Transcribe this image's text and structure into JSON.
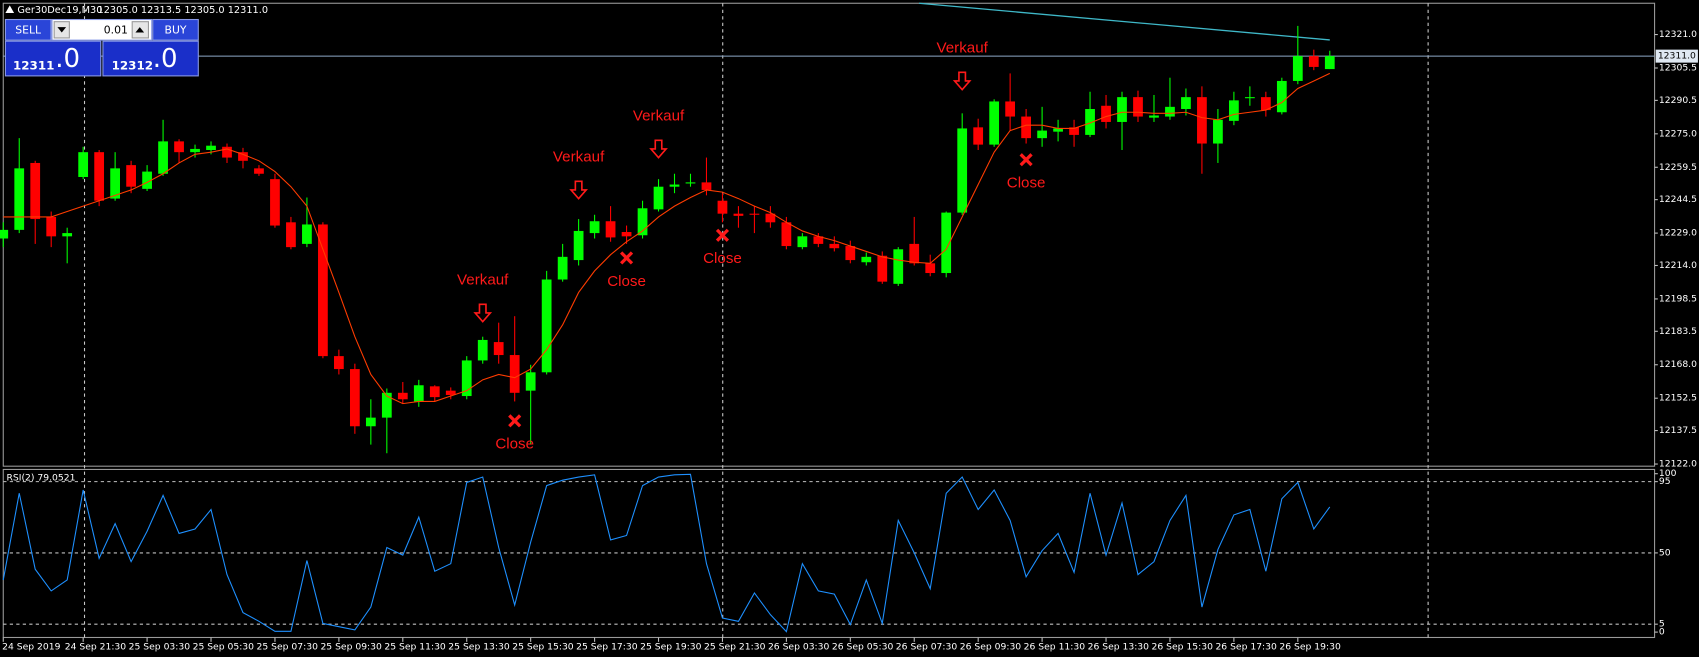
{
  "header": {
    "symbol": "Ger30Dec19,M30",
    "ohlc": "12305.0 12313.5 12305.0 12311.0"
  },
  "trade_panel": {
    "sell": "SELL",
    "buy": "BUY",
    "lot": "0.01",
    "bid": "12311",
    "bid_fraction": ".0",
    "ask": "12312",
    "ask_fraction": ".0"
  },
  "chart_data": [
    {
      "type": "candlestick",
      "categories": [
        "24 Sep 2019",
        null,
        null,
        null,
        null,
        "24 Sep 21:30",
        null,
        null,
        null,
        "25 Sep 03:30",
        null,
        null,
        null,
        "25 Sep 05:30",
        null,
        null,
        null,
        "25 Sep 07:30",
        null,
        null,
        null,
        "25 Sep 09:30",
        null,
        null,
        null,
        "25 Sep 11:30",
        null,
        null,
        null,
        "25 Sep 13:30",
        null,
        null,
        null,
        "25 Sep 15:30",
        null,
        null,
        null,
        "25 Sep 17:30",
        null,
        null,
        null,
        "25 Sep 19:30",
        null,
        null,
        null,
        "25 Sep 21:30",
        null,
        null,
        null,
        "26 Sep 03:30",
        null,
        null,
        null,
        "26 Sep 05:30",
        null,
        null,
        null,
        "26 Sep 07:30",
        null,
        null,
        null,
        "26 Sep 09:30",
        null,
        null,
        null,
        "26 Sep 11:30",
        null,
        null,
        null,
        "26 Sep 13:30",
        null,
        null,
        null,
        "26 Sep 15:30",
        null,
        null,
        null,
        "26 Sep 17:30",
        null,
        null,
        null,
        "26 Sep 19:30",
        null,
        null
      ],
      "open": [
        12226.5,
        12230.5,
        12261.5,
        12236.5,
        12227.5,
        12255,
        12266.5,
        12245,
        12260.5,
        12249.5,
        12256.5,
        12271.5,
        12266.5,
        12267.5,
        12269,
        12266.5,
        12259,
        12254,
        12234,
        12224,
        12233,
        12172,
        12166,
        12139.5,
        12143.5,
        12155,
        12151,
        12158,
        12156,
        12153.5,
        12170,
        12178.5,
        12172.5,
        12156,
        12164.5,
        12207.5,
        12216.5,
        12229,
        12234.5,
        12229.5,
        12228,
        12240,
        12250.5,
        12252.5,
        12252.5,
        12244,
        12238,
        12238,
        12238,
        12234,
        12222.5,
        12227.5,
        12224,
        12223,
        12215.5,
        12218.5,
        12205.5,
        12224,
        12215,
        12210.5,
        12238.5,
        12278,
        12270,
        12290,
        12283,
        12273,
        12276,
        12278,
        12274.5,
        12288,
        12280.5,
        12292,
        12282.5,
        12283,
        12286.5,
        12292,
        12270.5,
        12281,
        12291.5,
        12292,
        12285,
        12299.5,
        12311,
        12305
      ],
      "high": [
        12234,
        12273,
        12262.5,
        12239,
        12231.5,
        12269,
        12267.5,
        12266.5,
        12262.5,
        12260.5,
        12281.5,
        12272.5,
        12270,
        12271.5,
        12270.5,
        12268.5,
        12260.5,
        12256.5,
        12236.5,
        12245.5,
        12234,
        12175,
        12168.5,
        12152,
        12157,
        12160,
        12161,
        12158.5,
        12157.5,
        12172,
        12181,
        12187.5,
        12190.5,
        12168,
        12211.5,
        12224,
        12235.5,
        12237.5,
        12241.5,
        12232.5,
        12244,
        12254,
        12256.5,
        12256.5,
        12264,
        12247.5,
        12241.5,
        12241.5,
        12241.5,
        12236.5,
        12229,
        12229,
        12227.5,
        12225.5,
        12220,
        12220.5,
        12222.5,
        12236.5,
        12219,
        12239,
        12284.5,
        12282,
        12291,
        12303,
        12286.5,
        12287.5,
        12281.5,
        12281.5,
        12294.5,
        12293,
        12294.5,
        12295,
        12293,
        12301,
        12296,
        12297,
        12286.5,
        12294.5,
        12297,
        12294.5,
        12301,
        12325,
        12314,
        12313.5
      ],
      "low": [
        12222.5,
        12229,
        12224,
        12222.5,
        12215,
        12254,
        12241.5,
        12244,
        12247.5,
        12248.5,
        12255.5,
        12261.5,
        12264,
        12265.5,
        12261.5,
        12259,
        12255.5,
        12231.5,
        12221.5,
        12222.5,
        12171,
        12163.5,
        12136,
        12131,
        12127,
        12150,
        12148.5,
        12151,
        12152,
        12152,
        12168.5,
        12168.5,
        12151,
        12131,
        12163.5,
        12206.5,
        12214,
        12226.5,
        12225,
        12224,
        12226.5,
        12239,
        12247.5,
        12250.5,
        12246.5,
        12234,
        12231.5,
        12229,
        12231.5,
        12221.5,
        12221.5,
        12222.5,
        12220.5,
        12215,
        12214,
        12205.5,
        12204.5,
        12214,
        12209,
        12208.5,
        12237.5,
        12267.5,
        12269,
        12276.5,
        12270.5,
        12269,
        12271.5,
        12269,
        12273.5,
        12277.5,
        12267.5,
        12280.5,
        12280.5,
        12281.5,
        12283.5,
        12256.5,
        12261.5,
        12279,
        12288,
        12283,
        12284,
        12298,
        12304.5,
        12305
      ],
      "close": [
        12230.5,
        12259,
        12235.5,
        12227.5,
        12229,
        12266.5,
        12244,
        12259,
        12250.5,
        12257.5,
        12271.5,
        12266.5,
        12268,
        12269.5,
        12264,
        12262.5,
        12256.5,
        12232.5,
        12222.5,
        12233,
        12172,
        12166,
        12139.5,
        12143.5,
        12155,
        12152,
        12158.5,
        12153,
        12154,
        12170,
        12179.5,
        12172.5,
        12155,
        12164.5,
        12207.5,
        12218,
        12230,
        12234.5,
        12227,
        12227.5,
        12240.5,
        12250.5,
        12251.5,
        12252.5,
        12249,
        12238,
        12237,
        12237.5,
        12234,
        12223,
        12227.5,
        12224,
        12222,
        12216.5,
        12218,
        12206.5,
        12221.5,
        12215,
        12210.5,
        12238.5,
        12277.5,
        12270,
        12290,
        12283,
        12273,
        12276.5,
        12277.5,
        12274.5,
        12286.5,
        12280.5,
        12292,
        12283,
        12283.5,
        12287.5,
        12292,
        12270.5,
        12281.5,
        12290.5,
        12292,
        12286,
        12299.5,
        12311,
        12306,
        12311
      ],
      "up_color": "#00ff00",
      "down_color": "#ff0000",
      "ma": {
        "color": "#ff3c00",
        "values": [
          12236.5,
          12236.5,
          12236.5,
          12236.5,
          12239,
          12241.5,
          12244,
          12246.5,
          12249,
          12252.5,
          12256.5,
          12261.5,
          12265.5,
          12266.5,
          12268,
          12265.5,
          12262.5,
          12257.5,
          12250.5,
          12241.5,
          12221.5,
          12201.5,
          12181,
          12163.5,
          12153.5,
          12150,
          12151,
          12151,
          12153.5,
          12156,
          12161,
          12163.5,
          12162,
          12166,
          12175,
          12186.5,
          12201.5,
          12211.5,
          12219,
          12225,
          12230,
          12236.5,
          12241.5,
          12245.5,
          12249,
          12248,
          12245,
          12241.5,
          12238.5,
          12234,
          12230,
          12227.5,
          12225.5,
          12223,
          12220.5,
          12218,
          12216.5,
          12215.5,
          12215,
          12221.5,
          12236.5,
          12251.5,
          12266.5,
          12276.5,
          12279,
          12279,
          12277.5,
          12277.5,
          12280,
          12283,
          12285,
          12285,
          12284.5,
          12284.5,
          12285,
          12282.5,
          12281.5,
          12284,
          12285,
          12286,
          12289.5,
          12296,
          12299.5,
          12303
        ]
      },
      "trendline": {
        "x": [
          57.3,
          83
        ],
        "y": [
          12335.5,
          12318.5
        ],
        "color": "#3fb8c8"
      },
      "bid_line": {
        "value": 12311,
        "label": "12311.0",
        "color": "#8ea9c8"
      },
      "annotation_color": "#ff1a1a",
      "annotations": [
        {
          "label": "Verkauf",
          "marker": "arrow",
          "x": 30,
          "y": 12191.5
        },
        {
          "label": "Close",
          "marker": "cross",
          "x": 32,
          "y": 12142
        },
        {
          "label": "Verkauf",
          "marker": "arrow",
          "x": 36,
          "y": 12248.5
        },
        {
          "label": "Close",
          "marker": "cross",
          "x": 39,
          "y": 12217.5
        },
        {
          "label": "Verkauf",
          "marker": "arrow",
          "x": 41,
          "y": 12267.5
        },
        {
          "label": "Close",
          "marker": "cross",
          "x": 45,
          "y": 12228
        },
        {
          "label": "Verkauf",
          "marker": "arrow",
          "x": 60,
          "y": 12299
        },
        {
          "label": "Close",
          "marker": "cross",
          "x": 64,
          "y": 12263
        }
      ],
      "ylim": [
        12121,
        12335.5
      ],
      "yticks": [
        {
          "value": 12321,
          "label": "12321.0"
        },
        12305.5,
        12290.5,
        {
          "value": 12275,
          "label": "12275.0"
        },
        12259.5,
        12244.5,
        {
          "value": 12229,
          "label": "12229.0"
        },
        {
          "value": 12214,
          "label": "12214.0"
        },
        12198.5,
        12183.5,
        {
          "value": 12168,
          "label": "12168.0"
        },
        12152.5,
        12137.5,
        {
          "value": 12122,
          "label": "12122.0"
        }
      ]
    },
    {
      "type": "line",
      "title": "RSI(2) 79.0521",
      "color": "#1e90ff",
      "values": [
        32.9,
        87.7,
        39.7,
        26.0,
        32.9,
        89.7,
        46.6,
        68.5,
        44.5,
        63.7,
        86.3,
        62.3,
        65.1,
        77.4,
        36.3,
        12.3,
        6.8,
        0.5,
        0.5,
        45.2,
        5.5,
        3.4,
        1.4,
        15.8,
        53.4,
        48.6,
        72.6,
        38.4,
        43.2,
        94.5,
        97.9,
        53.4,
        17.1,
        56.8,
        92.5,
        95.9,
        97.9,
        99.3,
        58.2,
        61.0,
        92.5,
        97.9,
        99.3,
        99.6,
        43.2,
        8.9,
        6.8,
        24.7,
        11.0,
        0.3,
        43.2,
        26.0,
        24.0,
        4.8,
        32.9,
        5.5,
        70.5,
        50.0,
        27.4,
        87.7,
        97.9,
        77.4,
        89.7,
        70.5,
        34.9,
        51.4,
        62.3,
        37.7,
        87.7,
        48.6,
        81.5,
        36.3,
        44.5,
        70.5,
        86.3,
        15.8,
        52.1,
        74.0,
        77.4,
        38.4,
        84.2,
        94.5,
        65.1,
        79.0521
      ],
      "levels": [
        95,
        50,
        5
      ],
      "ylim": [
        -3.4,
        102.7
      ],
      "yticks": [
        100,
        95,
        50,
        5,
        0
      ]
    }
  ]
}
